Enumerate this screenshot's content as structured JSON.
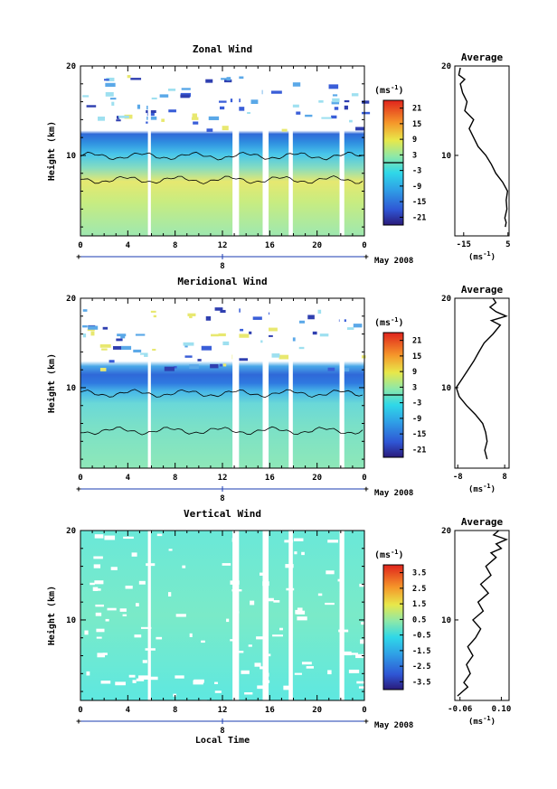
{
  "figure": {
    "xlabel": "Local Time",
    "date_label": "May 2008",
    "date_tick": "8",
    "ylabel": "Height (km)",
    "units": "(ms",
    "units_exp": "-1",
    "units_close": ")",
    "profile_title": "Average"
  },
  "chart_data": [
    {
      "type": "heatmap",
      "title": "Zonal Wind",
      "x_ticks": [
        "0",
        "4",
        "8",
        "12",
        "16",
        "20",
        "0"
      ],
      "y_ticks": [
        "10",
        "20"
      ],
      "xlim": [
        0,
        24
      ],
      "ylim": [
        1,
        20
      ],
      "gaps": [
        [
          5.7,
          5.95
        ],
        [
          12.85,
          13.4
        ],
        [
          15.4,
          15.9
        ],
        [
          17.6,
          17.95
        ],
        [
          21.9,
          22.3
        ]
      ],
      "colorbar": {
        "min": -24,
        "max": 24,
        "ticks": [
          "21",
          "15",
          "9",
          "3",
          "-3",
          "-9",
          "-15",
          "-21"
        ],
        "contour": 0
      },
      "profile": {
        "title": "Average",
        "x_ticks": [
          "-15",
          "5"
        ],
        "xlim": [
          -19,
          5.5
        ],
        "points": [
          [
            3.8,
            2
          ],
          [
            4.2,
            2.5
          ],
          [
            3.6,
            3
          ],
          [
            4.5,
            4
          ],
          [
            4.2,
            5
          ],
          [
            4.8,
            6
          ],
          [
            2.6,
            7
          ],
          [
            -0.5,
            8
          ],
          [
            -2.5,
            9
          ],
          [
            -5,
            10
          ],
          [
            -8.5,
            11
          ],
          [
            -10.5,
            12
          ],
          [
            -12.5,
            13
          ],
          [
            -10.5,
            14
          ],
          [
            -14.5,
            15
          ],
          [
            -13.5,
            16
          ],
          [
            -15.5,
            17
          ],
          [
            -16.5,
            18
          ],
          [
            -14.5,
            18.5
          ],
          [
            -17.2,
            19
          ],
          [
            -16.5,
            19.8
          ]
        ]
      }
    },
    {
      "type": "heatmap",
      "title": "Meridional Wind",
      "x_ticks": [
        "0",
        "4",
        "8",
        "12",
        "16",
        "20",
        "0"
      ],
      "y_ticks": [
        "10",
        "20"
      ],
      "xlim": [
        0,
        24
      ],
      "ylim": [
        1,
        20
      ],
      "gaps": [
        [
          5.7,
          5.95
        ],
        [
          12.85,
          13.4
        ],
        [
          15.4,
          15.9
        ],
        [
          17.6,
          17.95
        ],
        [
          21.9,
          22.3
        ]
      ],
      "colorbar": {
        "min": -24,
        "max": 24,
        "ticks": [
          "21",
          "15",
          "9",
          "3",
          "-3",
          "-9",
          "-15",
          "-21"
        ],
        "contour": 0
      },
      "profile": {
        "title": "Average",
        "x_ticks": [
          "-8",
          "8"
        ],
        "xlim": [
          -9,
          9.5
        ],
        "points": [
          [
            2,
            2
          ],
          [
            1.2,
            3
          ],
          [
            2,
            4
          ],
          [
            1.5,
            5
          ],
          [
            0.5,
            6
          ],
          [
            -2,
            7
          ],
          [
            -5,
            8
          ],
          [
            -7.5,
            9
          ],
          [
            -8.5,
            10
          ],
          [
            -6.5,
            11
          ],
          [
            -4.5,
            12
          ],
          [
            -2.5,
            13
          ],
          [
            -0.8,
            14
          ],
          [
            1,
            15
          ],
          [
            4,
            16
          ],
          [
            6.5,
            17
          ],
          [
            3.5,
            17.5
          ],
          [
            8.5,
            18
          ],
          [
            5,
            18.5
          ],
          [
            3,
            19
          ],
          [
            5,
            19.5
          ],
          [
            4,
            20
          ]
        ]
      }
    },
    {
      "type": "heatmap",
      "title": "Vertical Wind",
      "x_ticks": [
        "0",
        "4",
        "8",
        "12",
        "16",
        "20",
        "0"
      ],
      "y_ticks": [
        "10",
        "20"
      ],
      "xlim": [
        0,
        24
      ],
      "ylim": [
        1,
        20
      ],
      "gaps": [
        [
          5.7,
          5.95
        ],
        [
          12.85,
          13.4
        ],
        [
          15.4,
          15.9
        ],
        [
          17.6,
          17.95
        ],
        [
          21.9,
          22.3
        ]
      ],
      "colorbar": {
        "min": -4,
        "max": 4,
        "ticks": [
          "3.5",
          "2.5",
          "1.5",
          "0.5",
          "-0.5",
          "-1.5",
          "-2.5",
          "-3.5"
        ],
        "contour": null
      },
      "profile": {
        "title": "Average",
        "x_ticks": [
          "-0.06",
          "0.10"
        ],
        "xlim": [
          -0.08,
          0.13
        ],
        "points": [
          [
            -0.07,
            1.5
          ],
          [
            -0.05,
            2
          ],
          [
            -0.03,
            2.5
          ],
          [
            -0.045,
            3
          ],
          [
            -0.02,
            4
          ],
          [
            -0.035,
            5
          ],
          [
            -0.01,
            6
          ],
          [
            -0.03,
            7
          ],
          [
            0.0,
            8
          ],
          [
            0.02,
            9
          ],
          [
            -0.01,
            10
          ],
          [
            0.03,
            11
          ],
          [
            0.01,
            12
          ],
          [
            0.05,
            13
          ],
          [
            0.02,
            14
          ],
          [
            0.06,
            15
          ],
          [
            0.04,
            16
          ],
          [
            0.08,
            17
          ],
          [
            0.06,
            17.5
          ],
          [
            0.1,
            18
          ],
          [
            0.08,
            18.5
          ],
          [
            0.12,
            19
          ],
          [
            0.07,
            19.5
          ],
          [
            0.09,
            20
          ]
        ]
      }
    }
  ]
}
